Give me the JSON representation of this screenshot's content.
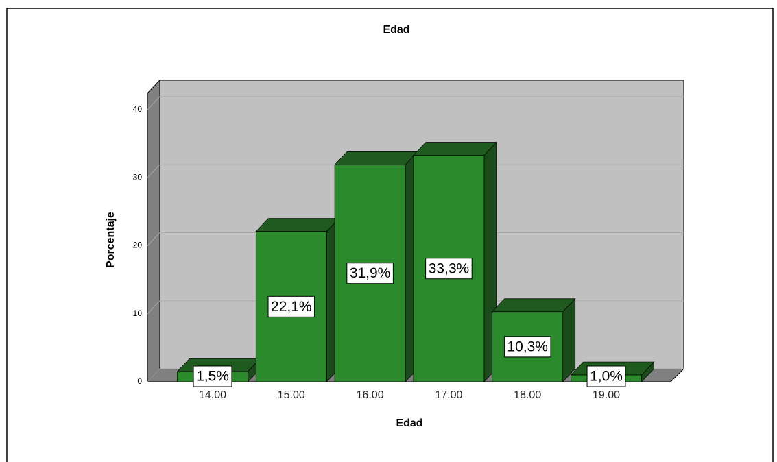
{
  "chart_data": {
    "type": "bar",
    "title": "Edad",
    "x_label": "Edad",
    "y_label": "Porcentaje",
    "categories": [
      "14.00",
      "15.00",
      "16.00",
      "17.00",
      "18.00",
      "19.00"
    ],
    "values": [
      1.5,
      22.1,
      31.9,
      33.3,
      10.3,
      1.0
    ],
    "value_labels": [
      "1,5%",
      "22,1%",
      "31,9%",
      "33,3%",
      "10,3%",
      "1,0%"
    ],
    "color": "#2b8a2b",
    "ylim": [
      0,
      40
    ],
    "yticks": [
      0,
      10,
      20,
      30,
      40
    ],
    "grid": true
  }
}
